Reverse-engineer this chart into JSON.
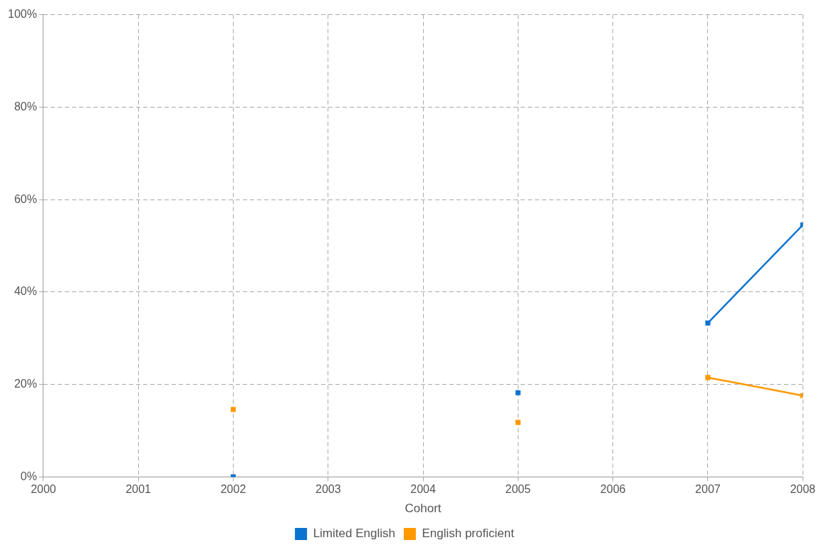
{
  "chart_data": {
    "type": "line",
    "xlabel": "Cohort",
    "series": [
      {
        "name": "Limited English",
        "color": "#0b72d0",
        "x": [
          2007,
          2008
        ],
        "values": [
          33.3,
          54.5
        ]
      },
      {
        "name": "English proficient",
        "color": "#ff9900",
        "x": [
          2007,
          2008
        ],
        "values": [
          21.5,
          17.6
        ]
      },
      {
        "type": "scatter",
        "color": "#0b72d0",
        "x": [
          2002,
          2005
        ],
        "values": [
          0,
          18.2
        ]
      },
      {
        "type": "scatter",
        "color": "#ff9900",
        "x": [
          2002,
          2005
        ],
        "values": [
          14.6,
          11.8
        ]
      }
    ],
    "xlim": [
      2000,
      2008
    ],
    "xticks": [
      2000,
      2001,
      2002,
      2003,
      2004,
      2005,
      2006,
      2007,
      2008
    ],
    "ylim": [
      0,
      100
    ],
    "yticks": [
      {
        "value": 0,
        "label": "0%"
      },
      {
        "value": 20,
        "label": "20%"
      },
      {
        "value": 40,
        "label": "40%"
      },
      {
        "value": 60,
        "label": "60%"
      },
      {
        "value": 80,
        "label": "80%"
      },
      {
        "value": 100,
        "label": "100%"
      }
    ],
    "grid": true,
    "legend": "bottom",
    "marker": "square",
    "line_style": "solid"
  }
}
